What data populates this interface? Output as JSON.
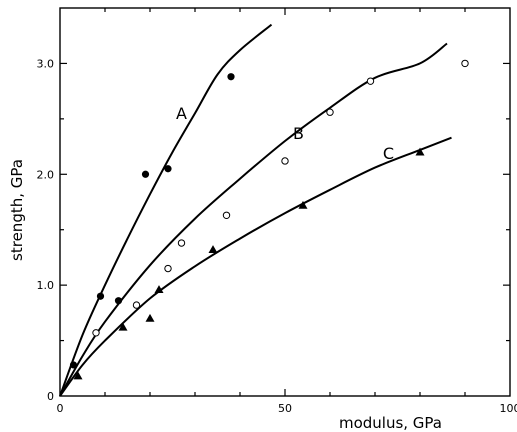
{
  "chart_data": {
    "type": "scatter",
    "xlabel": "modulus, GPa",
    "ylabel": "strength, GPa",
    "xlim": [
      0,
      100
    ],
    "ylim": [
      0,
      3.5
    ],
    "x_ticks": [
      0,
      50,
      100
    ],
    "y_ticks": [
      0,
      1.0,
      2.0,
      3.0
    ],
    "x_tick_labels": [
      "0",
      "50",
      "100"
    ],
    "y_tick_labels": [
      "0",
      "1.0",
      "2.0",
      "3.0"
    ],
    "grid": false,
    "series": [
      {
        "name": "A",
        "marker": "filled-circle",
        "points": [
          [
            3,
            0.28
          ],
          [
            9,
            0.9
          ],
          [
            13,
            0.86
          ],
          [
            19,
            2.0
          ],
          [
            24,
            2.05
          ],
          [
            38,
            2.88
          ]
        ],
        "curve": [
          [
            0,
            0
          ],
          [
            5,
            0.55
          ],
          [
            10,
            1.0
          ],
          [
            15,
            1.42
          ],
          [
            20,
            1.82
          ],
          [
            25,
            2.2
          ],
          [
            30,
            2.55
          ],
          [
            35,
            2.9
          ],
          [
            40,
            3.12
          ],
          [
            47,
            3.35
          ]
        ]
      },
      {
        "name": "B",
        "marker": "open-circle",
        "points": [
          [
            8,
            0.57
          ],
          [
            17,
            0.82
          ],
          [
            24,
            1.15
          ],
          [
            27,
            1.38
          ],
          [
            37,
            1.63
          ],
          [
            50,
            2.12
          ],
          [
            60,
            2.56
          ],
          [
            69,
            2.84
          ],
          [
            90,
            3.0
          ]
        ],
        "curve": [
          [
            0,
            0
          ],
          [
            5,
            0.36
          ],
          [
            10,
            0.67
          ],
          [
            20,
            1.18
          ],
          [
            30,
            1.6
          ],
          [
            40,
            1.96
          ],
          [
            50,
            2.3
          ],
          [
            60,
            2.6
          ],
          [
            70,
            2.87
          ],
          [
            80,
            3.0
          ],
          [
            86,
            3.18
          ]
        ]
      },
      {
        "name": "C",
        "marker": "filled-triangle",
        "points": [
          [
            4,
            0.18
          ],
          [
            14,
            0.62
          ],
          [
            20,
            0.7
          ],
          [
            22,
            0.96
          ],
          [
            34,
            1.32
          ],
          [
            54,
            1.72
          ],
          [
            80,
            2.2
          ]
        ],
        "curve": [
          [
            0,
            0
          ],
          [
            5,
            0.28
          ],
          [
            10,
            0.5
          ],
          [
            20,
            0.88
          ],
          [
            30,
            1.17
          ],
          [
            40,
            1.42
          ],
          [
            50,
            1.65
          ],
          [
            60,
            1.86
          ],
          [
            70,
            2.06
          ],
          [
            80,
            2.22
          ],
          [
            87,
            2.33
          ]
        ]
      }
    ]
  }
}
